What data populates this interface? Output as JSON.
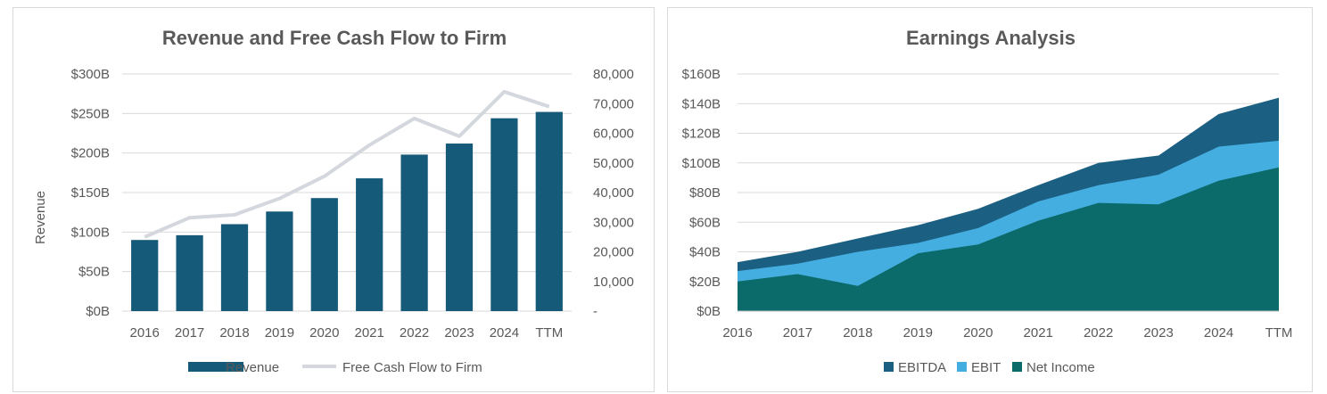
{
  "colors": {
    "revenue": "#155a78",
    "fcff": "#d4d8de",
    "ebitda": "#1b5f82",
    "ebit": "#45aee0",
    "net_income": "#0b6b6b",
    "grid": "#d9d9d9",
    "text": "#595959"
  },
  "chart_data": [
    {
      "type": "bar",
      "title": "Revenue and Free Cash Flow to Firm",
      "ylabel": "Revenue",
      "categories": [
        "2016",
        "2017",
        "2018",
        "2019",
        "2020",
        "2021",
        "2022",
        "2023",
        "2024",
        "TTM"
      ],
      "y_ticks": [
        "$0B",
        "$50B",
        "$100B",
        "$150B",
        "$200B",
        "$250B",
        "$300B"
      ],
      "y2_ticks": [
        "-",
        "10,000",
        "20,000",
        "30,000",
        "40,000",
        "50,000",
        "60,000",
        "70,000",
        "80,000"
      ],
      "ylim": [
        0,
        300
      ],
      "y2lim": [
        0,
        80000
      ],
      "grid": true,
      "legend_position": "bottom",
      "series": [
        {
          "name": "Revenue",
          "type": "bar",
          "axis": "left",
          "values": [
            90,
            96,
            110,
            126,
            143,
            168,
            198,
            212,
            244,
            252
          ]
        },
        {
          "name": "Free Cash Flow to Firm",
          "type": "line",
          "axis": "right",
          "values": [
            25000,
            31500,
            32500,
            38000,
            45500,
            56000,
            65000,
            59000,
            74000,
            69000
          ]
        }
      ]
    },
    {
      "type": "area",
      "title": "Earnings Analysis",
      "categories": [
        "2016",
        "2017",
        "2018",
        "2019",
        "2020",
        "2021",
        "2022",
        "2023",
        "2024",
        "TTM"
      ],
      "y_ticks": [
        "$0B",
        "$20B",
        "$40B",
        "$60B",
        "$80B",
        "$100B",
        "$120B",
        "$140B",
        "$160B"
      ],
      "ylim": [
        0,
        160
      ],
      "grid": true,
      "legend_position": "bottom",
      "series": [
        {
          "name": "EBITDA",
          "values": [
            33,
            40,
            49,
            58,
            69,
            85,
            100,
            105,
            133,
            144
          ]
        },
        {
          "name": "EBIT",
          "values": [
            27,
            32,
            40,
            46,
            56,
            74,
            85,
            92,
            111,
            115
          ]
        },
        {
          "name": "Net Income",
          "values": [
            20,
            25,
            17,
            39,
            45,
            61,
            73,
            72,
            88,
            97
          ]
        }
      ]
    }
  ]
}
